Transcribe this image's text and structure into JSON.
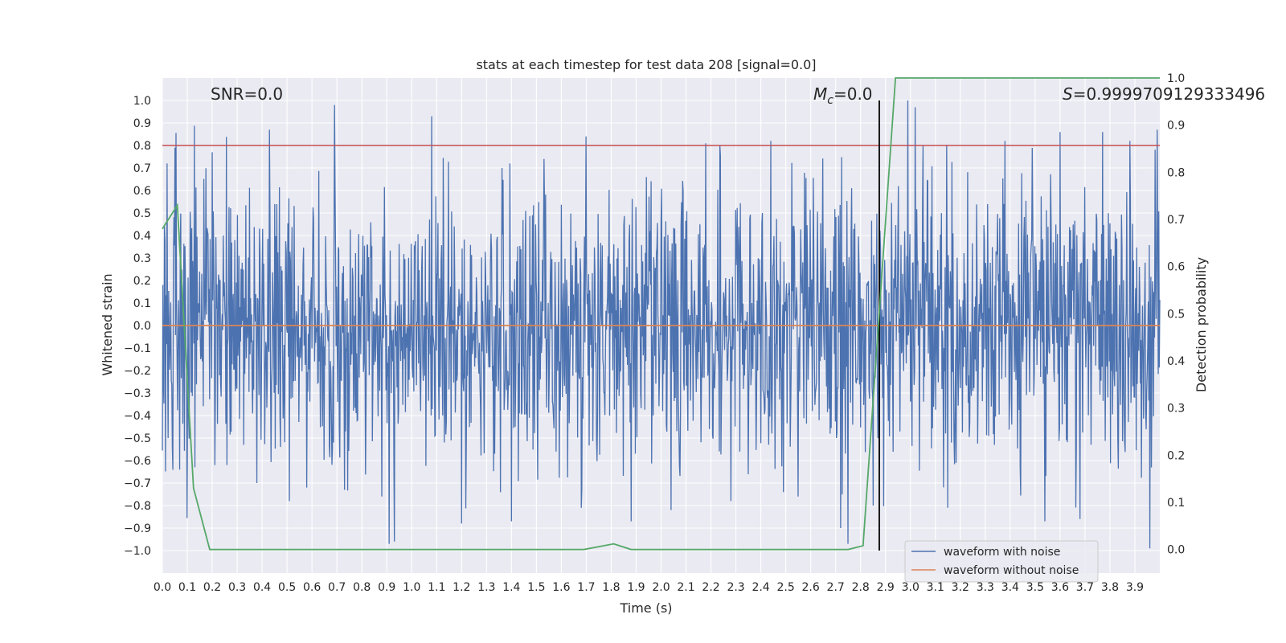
{
  "chart_data": {
    "type": "line",
    "title": "stats at each timestep for test data 208 [signal=0.0]",
    "xlabel": "Time (s)",
    "ylabel": "Whitened strain",
    "y2label": "Detection probability",
    "xlim": [
      0,
      4.0
    ],
    "ylim": [
      -1.1,
      1.1
    ],
    "y2lim": [
      -0.05,
      1.0
    ],
    "x_ticks": [
      0.0,
      0.1,
      0.2,
      0.3,
      0.4,
      0.5,
      0.6,
      0.7,
      0.8,
      0.9,
      1.0,
      1.1,
      1.2,
      1.3,
      1.4,
      1.5,
      1.6,
      1.7,
      1.8,
      1.9,
      2.0,
      2.1,
      2.2,
      2.3,
      2.4,
      2.5,
      2.6,
      2.7,
      2.8,
      2.9,
      3.0,
      3.1,
      3.2,
      3.3,
      3.4,
      3.5,
      3.6,
      3.7,
      3.8,
      3.9
    ],
    "x_tick_labels": [
      "0.0",
      "0.1",
      "0.2",
      "0.3",
      "0.4",
      "0.5",
      "0.6",
      "0.7",
      "0.8",
      "0.9",
      "1.0",
      "1.1",
      "1.2",
      "1.3",
      "1.4",
      "1.5",
      "1.6",
      "1.7",
      "1.8",
      "1.9",
      "2.0",
      "2.1",
      "2.2",
      "2.3",
      "2.4",
      "2.5",
      "2.6",
      "2.7",
      "2.8",
      "2.9",
      "3.0",
      "3.1",
      "3.2",
      "3.3",
      "3.4",
      "3.5",
      "3.6",
      "3.7",
      "3.8",
      "3.9"
    ],
    "y_ticks": [
      1.0,
      0.9,
      0.8,
      0.7,
      0.6,
      0.5,
      0.4,
      0.3,
      0.2,
      0.1,
      0.0,
      -0.1,
      -0.2,
      -0.3,
      -0.4,
      -0.5,
      -0.6,
      -0.7,
      -0.8,
      -0.9,
      -1.0
    ],
    "y_tick_labels": [
      "1.0",
      "0.9",
      "0.8",
      "0.7",
      "0.6",
      "0.5",
      "0.4",
      "0.3",
      "0.2",
      "0.1",
      "0.0",
      "−0.1",
      "−0.2",
      "−0.3",
      "−0.4",
      "−0.5",
      "−0.6",
      "−0.7",
      "−0.8",
      "−0.9",
      "−1.0"
    ],
    "y2_ticks": [
      1.0,
      0.9,
      0.8,
      0.7,
      0.6,
      0.5,
      0.4,
      0.3,
      0.2,
      0.1,
      0.0
    ],
    "y2_tick_labels": [
      "1.0",
      "0.9",
      "0.8",
      "0.7",
      "0.6",
      "0.5",
      "0.4",
      "0.3",
      "0.2",
      "0.1",
      "0.0"
    ],
    "grid": true,
    "legend_position": "bottom-right",
    "series": [
      {
        "name": "waveform with noise",
        "color": "#4c72b0",
        "axis": "left",
        "noise_amplitude_envelope": 0.45,
        "noise_peaks": [
          {
            "x": 0.02,
            "y": 0.72
          },
          {
            "x": 0.04,
            "y": -0.54
          },
          {
            "x": 0.05,
            "y": 0.79
          },
          {
            "x": 0.07,
            "y": -0.64
          },
          {
            "x": 0.13,
            "y": -0.63
          },
          {
            "x": 0.2,
            "y": 0.77
          },
          {
            "x": 0.21,
            "y": -0.62
          },
          {
            "x": 0.26,
            "y": -0.62
          },
          {
            "x": 0.38,
            "y": -0.7
          },
          {
            "x": 0.43,
            "y": 0.87
          },
          {
            "x": 0.51,
            "y": -0.78
          },
          {
            "x": 0.58,
            "y": -0.72
          },
          {
            "x": 0.69,
            "y": 0.98
          },
          {
            "x": 0.73,
            "y": -0.73
          },
          {
            "x": 0.88,
            "y": -0.76
          },
          {
            "x": 0.91,
            "y": -0.97
          },
          {
            "x": 0.93,
            "y": -0.96
          },
          {
            "x": 1.08,
            "y": 0.93
          },
          {
            "x": 1.2,
            "y": -0.88
          },
          {
            "x": 1.4,
            "y": -0.87
          },
          {
            "x": 1.53,
            "y": 0.74
          },
          {
            "x": 1.68,
            "y": -0.81
          },
          {
            "x": 1.7,
            "y": 0.84
          },
          {
            "x": 1.88,
            "y": -0.87
          },
          {
            "x": 2.04,
            "y": -0.82
          },
          {
            "x": 2.18,
            "y": 0.81
          },
          {
            "x": 2.28,
            "y": -0.78
          },
          {
            "x": 2.44,
            "y": 0.82
          },
          {
            "x": 2.55,
            "y": -0.76
          },
          {
            "x": 2.72,
            "y": -0.9
          },
          {
            "x": 2.75,
            "y": -0.97
          },
          {
            "x": 2.85,
            "y": -0.8
          },
          {
            "x": 2.99,
            "y": 1.0
          },
          {
            "x": 3.02,
            "y": 0.97
          },
          {
            "x": 3.05,
            "y": 0.8
          },
          {
            "x": 3.15,
            "y": -0.81
          },
          {
            "x": 3.38,
            "y": 0.82
          },
          {
            "x": 3.54,
            "y": -0.87
          },
          {
            "x": 3.6,
            "y": 0.86
          },
          {
            "x": 3.68,
            "y": -0.86
          },
          {
            "x": 3.77,
            "y": 0.86
          },
          {
            "x": 3.88,
            "y": 0.82
          },
          {
            "x": 3.96,
            "y": -0.99
          },
          {
            "x": 3.99,
            "y": 0.87
          }
        ]
      },
      {
        "name": "waveform without noise",
        "color": "#dd8452",
        "axis": "left",
        "x": [
          0.0,
          4.0
        ],
        "y": [
          0.0,
          0.0
        ]
      },
      {
        "name": "",
        "color": "#55a868",
        "axis": "right",
        "x": [
          0.0,
          0.06,
          0.125,
          0.19,
          1.5,
          1.69,
          1.81,
          1.88,
          2.5,
          2.75,
          2.81,
          2.94,
          4.0
        ],
        "y": [
          0.68,
          0.73,
          0.13,
          0.0,
          0.0,
          0.0,
          0.012,
          0.0,
          0.0,
          0.0,
          0.008,
          1.0,
          1.0
        ]
      }
    ],
    "hlines": [
      {
        "axis": "left",
        "y": 0.8,
        "color": "#c44e52"
      }
    ],
    "vlines": [
      {
        "x": 2.875,
        "color": "#000000",
        "ymin": -1.0,
        "ymax": 1.0
      }
    ],
    "annotations": {
      "snr": "SNR=0.0",
      "mc_symbol": "M",
      "mc_sub": "c",
      "mc_value": "=0.0",
      "s_symbol": "S",
      "s_value": "=0.9999709129333496"
    }
  }
}
